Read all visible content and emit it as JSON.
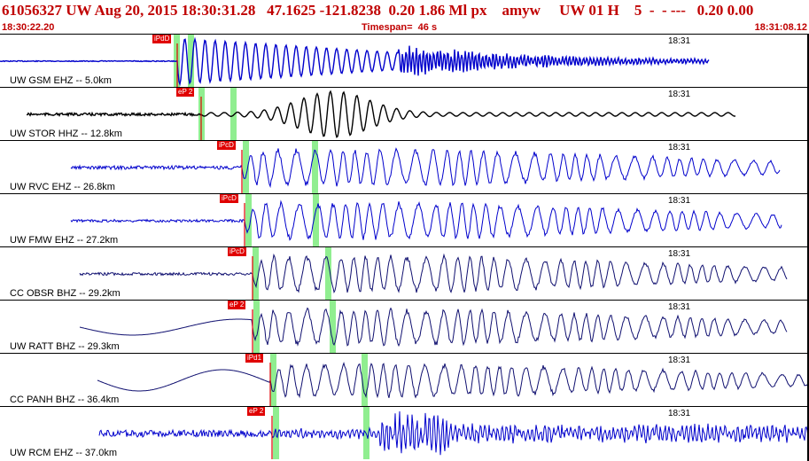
{
  "header": {
    "title": "61056327 UW Aug 20, 2015 18:30:31.28   47.1625 -121.8238  0.20 1.86 Ml px    amyw     UW 01 H    5  -  - ---   0.20 0.00",
    "start_time": "18:30:22.20",
    "timespan": "Timespan=  46 s",
    "end_time": "18:31:08.12"
  },
  "colors": {
    "title": "#c00000",
    "pick_tag": "#e00000",
    "s_window": "#90ee90",
    "trace_blue": "#0000cc",
    "trace_black": "#000000",
    "trace_navy": "#101070"
  },
  "minute_label": "18:31",
  "panels": [
    {
      "label": "UW GSM EHZ -- 5.0km",
      "pick": "iPdD",
      "color": "trace_blue"
    },
    {
      "label": "UW STOR HHZ -- 12.8km",
      "pick": "eP 2",
      "color": "trace_black"
    },
    {
      "label": "UW RVC EHZ -- 26.8km",
      "pick": "iPcD",
      "color": "trace_blue"
    },
    {
      "label": "UW FMW EHZ -- 27.2km",
      "pick": "iPcD",
      "color": "trace_blue"
    },
    {
      "label": "CC OBSR BHZ -- 29.2km",
      "pick": "iPcD",
      "color": "trace_navy"
    },
    {
      "label": "UW RATT BHZ -- 29.3km",
      "pick": "eP 2",
      "color": "trace_navy"
    },
    {
      "label": "CC PANH BHZ -- 36.4km",
      "pick": "iPd1",
      "color": "trace_navy"
    },
    {
      "label": "UW RCM EHZ -- 37.0km",
      "pick": "eP 2",
      "color": "trace_blue"
    }
  ]
}
